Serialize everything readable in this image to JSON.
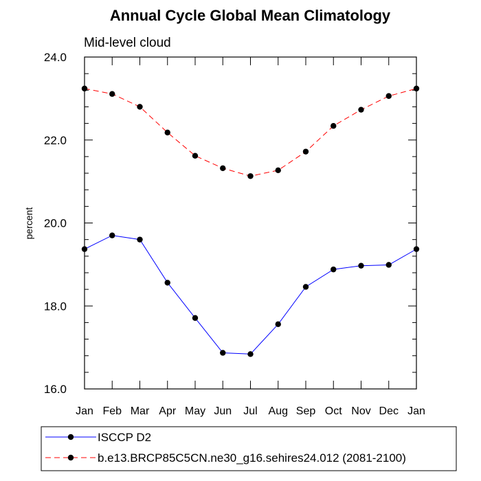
{
  "chart_data": {
    "type": "line",
    "title": "Annual Cycle Global Mean Climatology",
    "subtitle": "Mid-level cloud",
    "xlabel": "",
    "ylabel": "percent",
    "categories": [
      "Jan",
      "Feb",
      "Mar",
      "Apr",
      "May",
      "Jun",
      "Jul",
      "Aug",
      "Sep",
      "Oct",
      "Nov",
      "Dec",
      "Jan"
    ],
    "ylim": [
      16.0,
      24.0
    ],
    "yticks": [
      "16.0",
      "18.0",
      "20.0",
      "22.0",
      "24.0"
    ],
    "grid": false,
    "legend_position": "bottom",
    "series": [
      {
        "name": "ISCCP D2",
        "color": "#0000ff",
        "line_style": "solid",
        "marker": "filled-circle",
        "values": [
          19.37,
          19.7,
          19.6,
          18.56,
          17.71,
          16.87,
          16.84,
          17.56,
          18.46,
          18.88,
          18.97,
          18.99,
          19.37
        ]
      },
      {
        "name": "b.e13.BRCP85C5CN.ne30_g16.sehires24.012 (2081-2100)",
        "color": "#ff0000",
        "line_style": "dashed",
        "marker": "filled-circle",
        "values": [
          23.24,
          23.11,
          22.8,
          22.18,
          21.62,
          21.32,
          21.13,
          21.27,
          21.72,
          22.34,
          22.73,
          23.06,
          23.24
        ]
      }
    ]
  }
}
